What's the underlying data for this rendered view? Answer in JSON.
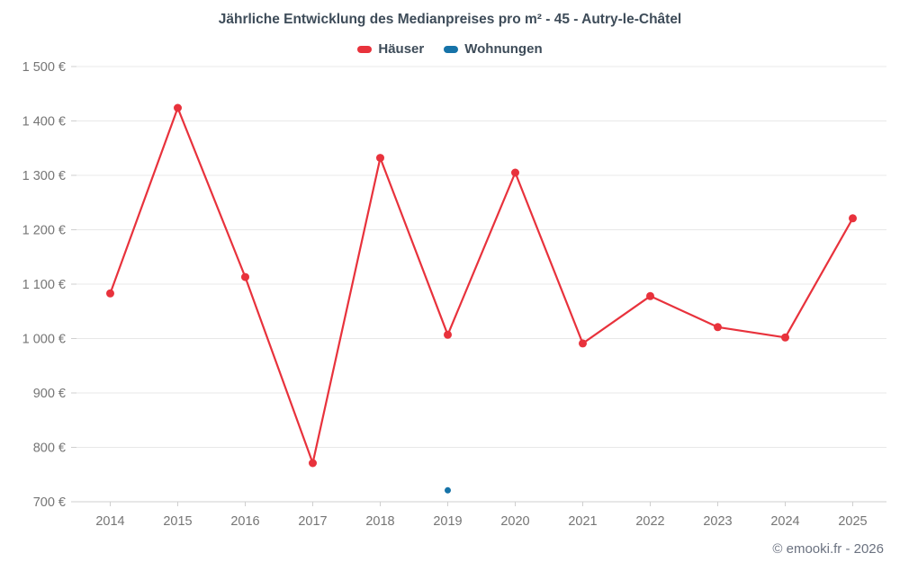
{
  "title": "Jährliche Entwicklung des Medianpreises pro m² - 45 - Autry-le-Châtel",
  "footer": "© emooki.fr - 2026",
  "colors": {
    "hauser": "#e8323c",
    "wohnungen": "#1673a8",
    "grid": "#e8e8e8",
    "axis_line": "#cfcfcf",
    "axis_text": "#757575",
    "title_text": "#3e4c59"
  },
  "chart_data": {
    "type": "line",
    "x": [
      2014,
      2015,
      2016,
      2017,
      2018,
      2019,
      2020,
      2021,
      2022,
      2023,
      2024,
      2025
    ],
    "series": [
      {
        "name": "Häuser",
        "color": "#e8323c",
        "values": [
          1083,
          1424,
          1113,
          771,
          1332,
          1007,
          1305,
          991,
          1078,
          1021,
          1002,
          1221
        ]
      },
      {
        "name": "Wohnungen",
        "color": "#1673a8",
        "values": [
          null,
          null,
          null,
          null,
          null,
          721,
          null,
          null,
          null,
          null,
          null,
          null
        ]
      }
    ],
    "ylim": [
      700,
      1500
    ],
    "ytick_step": 100,
    "ytick_suffix": " €",
    "grid": "horizontal",
    "legend_position": "top"
  }
}
